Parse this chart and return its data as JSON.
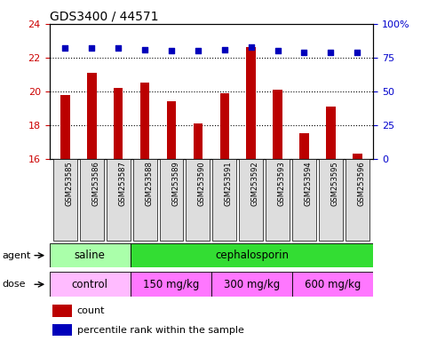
{
  "title": "GDS3400 / 44571",
  "samples": [
    "GSM253585",
    "GSM253586",
    "GSM253587",
    "GSM253588",
    "GSM253589",
    "GSM253590",
    "GSM253591",
    "GSM253592",
    "GSM253593",
    "GSM253594",
    "GSM253595",
    "GSM253596"
  ],
  "counts": [
    19.8,
    21.1,
    20.2,
    20.5,
    19.4,
    18.1,
    19.9,
    22.6,
    20.1,
    17.5,
    19.1,
    16.3
  ],
  "percentile_ranks": [
    82,
    82,
    82,
    81,
    80,
    80,
    81,
    83,
    80,
    79,
    79,
    79
  ],
  "ylim_left": [
    16,
    24
  ],
  "ylim_right": [
    0,
    100
  ],
  "yticks_left": [
    16,
    18,
    20,
    22,
    24
  ],
  "yticks_right": [
    0,
    25,
    50,
    75,
    100
  ],
  "bar_color": "#bb0000",
  "dot_color": "#0000bb",
  "bar_width": 0.35,
  "agent_groups": [
    {
      "label": "saline",
      "start": 0,
      "end": 3,
      "color": "#aaffaa"
    },
    {
      "label": "cephalosporin",
      "start": 3,
      "end": 12,
      "color": "#33dd33"
    }
  ],
  "dose_groups": [
    {
      "label": "control",
      "start": 0,
      "end": 3,
      "color": "#ffbbff"
    },
    {
      "label": "150 mg/kg",
      "start": 3,
      "end": 6,
      "color": "#ff77ff"
    },
    {
      "label": "300 mg/kg",
      "start": 6,
      "end": 9,
      "color": "#ff77ff"
    },
    {
      "label": "600 mg/kg",
      "start": 9,
      "end": 12,
      "color": "#ff77ff"
    }
  ],
  "legend_items": [
    {
      "label": "count",
      "color": "#bb0000",
      "marker": "s"
    },
    {
      "label": "percentile rank within the sample",
      "color": "#0000bb",
      "marker": "s"
    }
  ],
  "tick_label_color_left": "#cc0000",
  "tick_label_color_right": "#0000cc",
  "background_color": "#ffffff"
}
